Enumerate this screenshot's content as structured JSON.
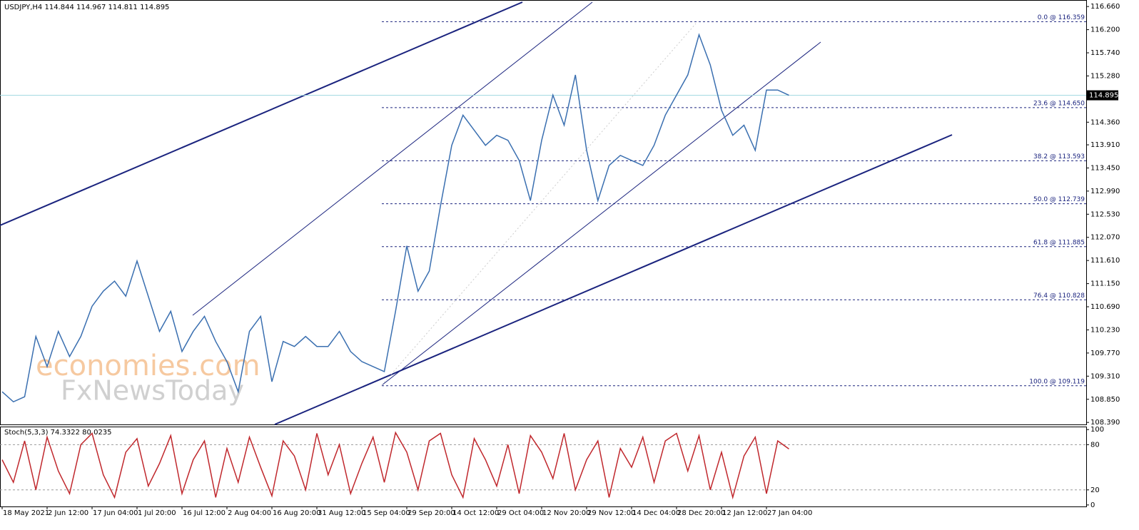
{
  "chart_data": [
    {
      "type": "line",
      "title": "USDJPY,H4  114.844 114.967 114.811 114.895",
      "series": [
        {
          "name": "USDJPY",
          "color": "#3a6fb0",
          "values": [
            109.0,
            108.8,
            108.9,
            110.1,
            109.5,
            110.2,
            109.7,
            110.1,
            110.7,
            111.0,
            111.2,
            110.9,
            111.6,
            110.9,
            110.2,
            110.6,
            109.8,
            110.2,
            110.5,
            110.0,
            109.6,
            109.0,
            110.2,
            110.5,
            109.2,
            110.0,
            109.9,
            110.1,
            109.9,
            109.9,
            110.2,
            109.8,
            109.6,
            109.5,
            109.4,
            110.6,
            111.9,
            111.0,
            111.4,
            112.7,
            113.9,
            114.5,
            114.2,
            113.9,
            114.1,
            114.0,
            113.6,
            112.8,
            114.0,
            114.9,
            114.3,
            115.3,
            113.8,
            112.8,
            113.5,
            113.7,
            113.6,
            113.5,
            113.9,
            114.5,
            114.9,
            115.3,
            116.1,
            115.5,
            114.6,
            114.1,
            114.3,
            113.8,
            115.0,
            115.0,
            114.895
          ]
        }
      ],
      "current_price": 114.895,
      "ylim": [
        108.35,
        116.79
      ],
      "yticks": [
        {
          "value": 116.66,
          "label": "116.660"
        },
        {
          "value": 116.2,
          "label": "116.200"
        },
        {
          "value": 115.74,
          "label": "115.740"
        },
        {
          "value": 115.28,
          "label": "115.280"
        },
        {
          "value": 114.36,
          "label": "114.360"
        },
        {
          "value": 113.91,
          "label": "113.910"
        },
        {
          "value": 113.45,
          "label": "113.450"
        },
        {
          "value": 112.99,
          "label": "112.990"
        },
        {
          "value": 112.53,
          "label": "112.530"
        },
        {
          "value": 112.07,
          "label": "112.070"
        },
        {
          "value": 111.61,
          "label": "111.610"
        },
        {
          "value": 111.15,
          "label": "111.150"
        },
        {
          "value": 110.69,
          "label": "110.690"
        },
        {
          "value": 110.23,
          "label": "110.230"
        },
        {
          "value": 109.77,
          "label": "109.770"
        },
        {
          "value": 109.31,
          "label": "109.310"
        },
        {
          "value": 108.85,
          "label": "108.850"
        },
        {
          "value": 108.39,
          "label": "108.390"
        }
      ],
      "fib_levels": [
        {
          "value": 116.359,
          "label": "0.0 @ 116.359"
        },
        {
          "value": 114.65,
          "label": "23.6 @ 114.650"
        },
        {
          "value": 113.593,
          "label": "38.2 @ 113.593"
        },
        {
          "value": 112.739,
          "label": "50.0 @ 112.739"
        },
        {
          "value": 111.885,
          "label": "61.8 @ 111.885"
        },
        {
          "value": 110.828,
          "label": "76.4 @ 110.828"
        },
        {
          "value": 109.119,
          "label": "100.0 @ 109.119"
        }
      ],
      "xticks": [
        {
          "value": 0,
          "label": "18 May 2021"
        },
        {
          "value": 4,
          "label": "2 Jun 12:00"
        },
        {
          "value": 8,
          "label": "17 Jun 04:00"
        },
        {
          "value": 12,
          "label": "1 Jul 20:00"
        },
        {
          "value": 16,
          "label": "16 Jul 12:00"
        },
        {
          "value": 20,
          "label": "2 Aug 04:00"
        },
        {
          "value": 24,
          "label": "16 Aug 20:00"
        },
        {
          "value": 28,
          "label": "31 Aug 12:00"
        },
        {
          "value": 32,
          "label": "15 Sep 04:00"
        },
        {
          "value": 36,
          "label": "29 Sep 20:00"
        },
        {
          "value": 40,
          "label": "14 Oct 12:00"
        },
        {
          "value": 44,
          "label": "29 Oct 04:00"
        },
        {
          "value": 48,
          "label": "12 Nov 20:00"
        },
        {
          "value": 52,
          "label": "29 Nov 12:00"
        },
        {
          "value": 56,
          "label": "14 Dec 04:00"
        },
        {
          "value": 60,
          "label": "28 Dec 20:00"
        },
        {
          "value": 64,
          "label": "12 Jan 12:00"
        },
        {
          "value": 68,
          "label": "27 Jan 04:00"
        }
      ],
      "watermarks": [
        "economies.com",
        "FxNewsToday"
      ]
    },
    {
      "type": "line",
      "title": "Stoch(5,3,3) 74.3322 80.0235",
      "series": [
        {
          "name": "Stoch",
          "color": "#c0282d",
          "values": [
            60,
            30,
            85,
            20,
            90,
            45,
            15,
            80,
            95,
            40,
            10,
            70,
            88,
            25,
            55,
            92,
            15,
            60,
            85,
            10,
            75,
            30,
            90,
            50,
            12,
            85,
            65,
            20,
            95,
            40,
            80,
            15,
            55,
            90,
            30,
            96,
            70,
            20,
            85,
            95,
            40,
            10,
            88,
            60,
            25,
            80,
            15,
            92,
            70,
            35,
            95,
            20,
            60,
            85,
            10,
            75,
            50,
            90,
            30,
            85,
            95,
            45,
            92,
            20,
            70,
            10,
            65,
            90,
            15,
            85,
            74.3322
          ]
        }
      ],
      "ylim": [
        -2,
        104
      ],
      "yticks": [
        0,
        20,
        80,
        100
      ]
    }
  ]
}
